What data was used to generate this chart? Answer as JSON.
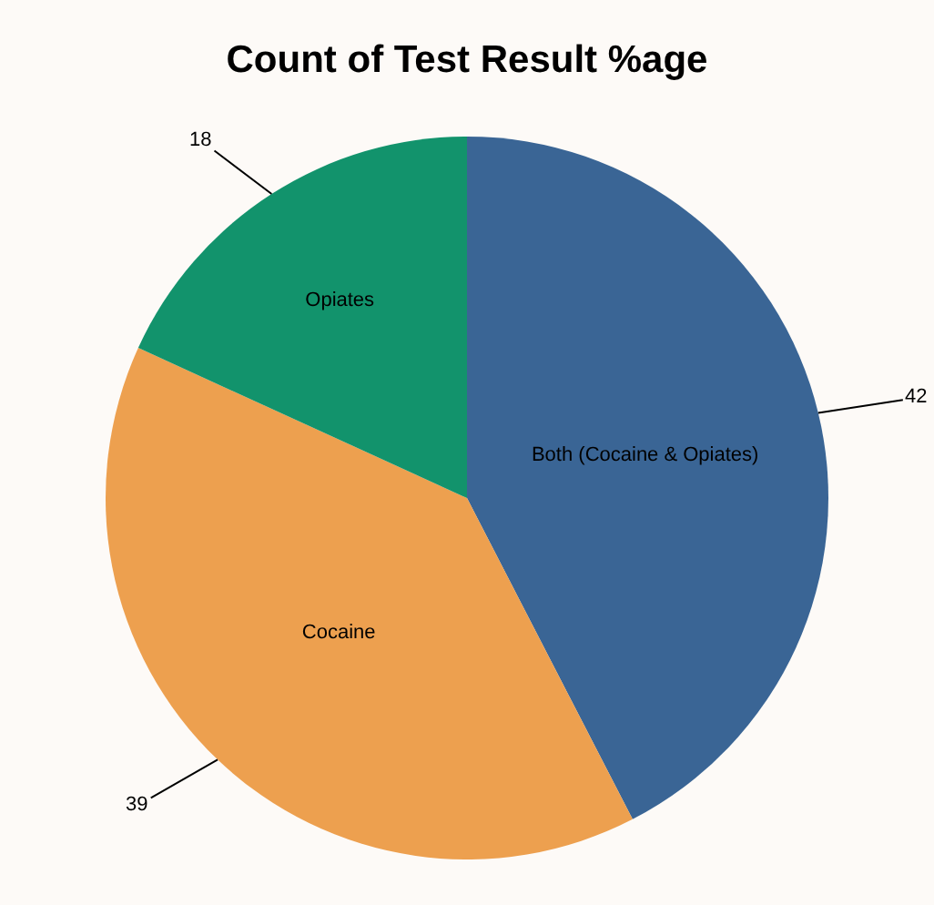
{
  "chart_data": {
    "type": "pie",
    "title": "Count of Test Result %age",
    "categories": [
      "Both (Cocaine & Opiates)",
      "Cocaine",
      "Opiates"
    ],
    "values": [
      42,
      39,
      18
    ],
    "colors": [
      "#3a6595",
      "#eda04f",
      "#12936c"
    ],
    "data_labels": true,
    "legend": false
  }
}
